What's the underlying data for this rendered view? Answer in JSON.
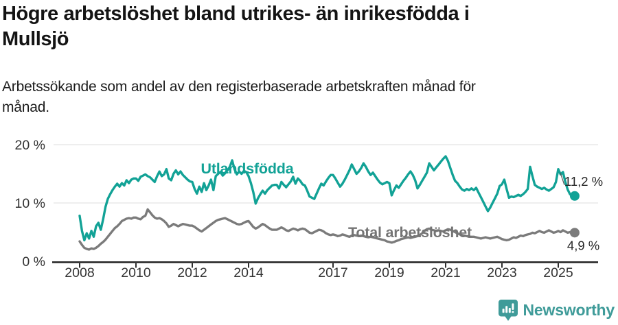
{
  "header": {
    "title_lines": [
      "Högre arbetslöshet bland utrikes- än inrikesfödda i",
      "Mullsjö"
    ],
    "subtitle_lines": [
      "Arbetssökande som andel av den registerbaserade arbetskraften månad för",
      "månad."
    ]
  },
  "footer": {
    "brand": "Newsworthy",
    "brand_color": "#3F9B99",
    "logo_icon": "bar-chart-speech-bubble-icon"
  },
  "chart_data": {
    "type": "line",
    "title": "Högre arbetslöshet bland utrikes- än inrikesfödda i Mullsjö",
    "subtitle": "Arbetssökande som andel av den registerbaserade arbetskraften månad för månad.",
    "frequency": "monthly",
    "x_start_year": 2008,
    "x_start_month": 1,
    "x_range": [
      2008.0,
      2025.6
    ],
    "ylim": [
      0,
      21.5
    ],
    "grid": true,
    "legend_position": "inline-labels",
    "x_ticks": [
      2008,
      2010,
      2012,
      2014,
      2017,
      2019,
      2021,
      2023,
      2025
    ],
    "y_ticks": [
      {
        "label": "0 %",
        "value": 0
      },
      {
        "label": "10 %",
        "value": 10
      },
      {
        "label": "20 %",
        "value": 20
      }
    ],
    "axis_color": "#2F2F2F",
    "grid_color": "#E3E3E3",
    "tick_label_color": "#333333",
    "series": [
      {
        "name": "Utlandsfödda",
        "color": "#12A296",
        "end_label": "11,2 %",
        "end_value": 11.2,
        "values": [
          7.8,
          5.2,
          3.6,
          4.8,
          3.9,
          5.2,
          4.2,
          6.0,
          6.6,
          5.4,
          7.2,
          9.3,
          10.7,
          11.5,
          12.2,
          12.8,
          13.3,
          12.8,
          13.4,
          13.0,
          13.9,
          13.4,
          14.0,
          14.2,
          14.2,
          13.8,
          14.5,
          14.7,
          14.9,
          14.6,
          14.4,
          14.0,
          13.6,
          14.6,
          15.4,
          14.6,
          14.9,
          15.8,
          14.2,
          13.9,
          15.0,
          15.6,
          14.9,
          15.4,
          14.8,
          14.4,
          14.0,
          13.7,
          13.6,
          12.4,
          11.6,
          12.8,
          11.9,
          13.4,
          12.2,
          13.0,
          14.0,
          12.2,
          14.6,
          15.0,
          15.3,
          14.7,
          15.1,
          15.6,
          16.2,
          17.3,
          15.8,
          14.9,
          15.4,
          15.0,
          15.5,
          15.3,
          14.6,
          13.4,
          11.9,
          9.9,
          10.8,
          11.5,
          12.1,
          11.6,
          12.2,
          12.6,
          13.0,
          13.1,
          13.1,
          12.5,
          13.6,
          13.1,
          12.7,
          13.2,
          13.7,
          14.5,
          13.3,
          14.2,
          13.8,
          13.2,
          13.0,
          12.1,
          11.1,
          10.9,
          10.7,
          11.6,
          12.5,
          13.3,
          13.0,
          13.7,
          14.3,
          14.8,
          14.8,
          14.2,
          13.5,
          12.8,
          13.3,
          14.0,
          14.8,
          15.6,
          16.6,
          15.8,
          15.0,
          15.4,
          16.0,
          16.8,
          16.2,
          15.4,
          14.8,
          15.2,
          14.6,
          14.0,
          13.5,
          13.2,
          13.4,
          13.6,
          13.4,
          11.3,
          12.2,
          13.0,
          12.6,
          13.2,
          13.8,
          14.3,
          14.9,
          15.4,
          14.8,
          13.9,
          12.5,
          13.1,
          13.8,
          14.5,
          15.2,
          16.8,
          16.2,
          15.6,
          16.1,
          16.6,
          17.1,
          17.6,
          18.0,
          17.2,
          16.0,
          14.8,
          13.8,
          13.4,
          12.8,
          12.3,
          12.1,
          12.4,
          12.2,
          12.5,
          12.2,
          12.6,
          11.8,
          11.0,
          10.2,
          9.4,
          8.6,
          9.2,
          10.0,
          10.8,
          11.6,
          12.9,
          13.2,
          14.0,
          12.4,
          10.9,
          11.1,
          11.0,
          11.2,
          11.4,
          11.2,
          11.5,
          11.9,
          12.4,
          16.2,
          14.6,
          13.1,
          12.8,
          12.6,
          12.4,
          12.6,
          12.3,
          12.1,
          12.4,
          12.7,
          13.6,
          15.8,
          14.9,
          15.3,
          13.6,
          12.3,
          11.5,
          11.3,
          11.2
        ]
      },
      {
        "name": "Total arbetslöshet",
        "color": "#7B7B7B",
        "end_label": "4,9 %",
        "end_value": 4.9,
        "values": [
          3.4,
          2.8,
          2.3,
          2.1,
          2.0,
          2.2,
          2.1,
          2.3,
          2.6,
          3.0,
          3.3,
          3.7,
          4.2,
          4.7,
          5.2,
          5.7,
          6.0,
          6.4,
          6.9,
          7.1,
          7.3,
          7.4,
          7.3,
          7.5,
          7.5,
          7.3,
          7.2,
          7.6,
          7.8,
          8.9,
          8.4,
          7.9,
          7.5,
          7.3,
          7.4,
          7.2,
          6.9,
          6.5,
          5.9,
          6.1,
          6.4,
          6.2,
          6.0,
          6.2,
          6.4,
          6.3,
          6.2,
          6.1,
          6.1,
          5.9,
          5.6,
          5.3,
          5.1,
          5.4,
          5.7,
          6.0,
          6.3,
          6.6,
          6.9,
          7.1,
          7.2,
          7.3,
          7.4,
          7.2,
          7.0,
          6.8,
          6.6,
          6.4,
          6.3,
          6.4,
          6.6,
          6.8,
          6.9,
          6.4,
          5.9,
          5.6,
          5.8,
          6.1,
          6.4,
          6.2,
          5.9,
          5.6,
          5.4,
          5.4,
          5.4,
          5.6,
          5.8,
          5.6,
          5.3,
          5.2,
          5.4,
          5.6,
          5.5,
          5.3,
          5.5,
          5.6,
          5.5,
          5.2,
          4.9,
          4.8,
          5.0,
          5.2,
          5.4,
          5.3,
          5.1,
          4.8,
          4.6,
          4.5,
          4.6,
          4.5,
          4.3,
          4.4,
          4.6,
          4.5,
          4.3,
          4.2,
          4.4,
          4.5,
          4.4,
          4.3,
          4.4,
          4.3,
          4.2,
          4.1,
          4.2,
          4.1,
          4.0,
          3.9,
          3.8,
          3.7,
          3.6,
          3.4,
          3.3,
          3.2,
          3.3,
          3.5,
          3.6,
          3.8,
          3.9,
          4.0,
          4.1,
          4.0,
          4.1,
          4.2,
          4.3,
          4.5,
          4.8,
          5.2,
          5.5,
          5.6,
          5.4,
          5.3,
          5.2,
          5.3,
          5.2,
          5.1,
          5.3,
          5.5,
          5.4,
          5.2,
          5.0,
          4.8,
          4.6,
          4.5,
          4.4,
          4.3,
          4.2,
          4.2,
          4.2,
          4.1,
          4.0,
          3.9,
          4.0,
          4.1,
          4.0,
          3.9,
          4.0,
          4.1,
          4.2,
          4.0,
          3.8,
          3.7,
          3.6,
          3.7,
          3.9,
          4.1,
          4.0,
          4.2,
          4.4,
          4.3,
          4.5,
          4.6,
          4.7,
          4.9,
          4.8,
          5.0,
          5.2,
          5.0,
          4.9,
          5.1,
          5.3,
          5.1,
          4.9,
          5.0,
          5.2,
          5.0,
          5.3,
          5.1,
          4.9,
          5.0,
          5.1,
          4.9
        ]
      }
    ]
  }
}
